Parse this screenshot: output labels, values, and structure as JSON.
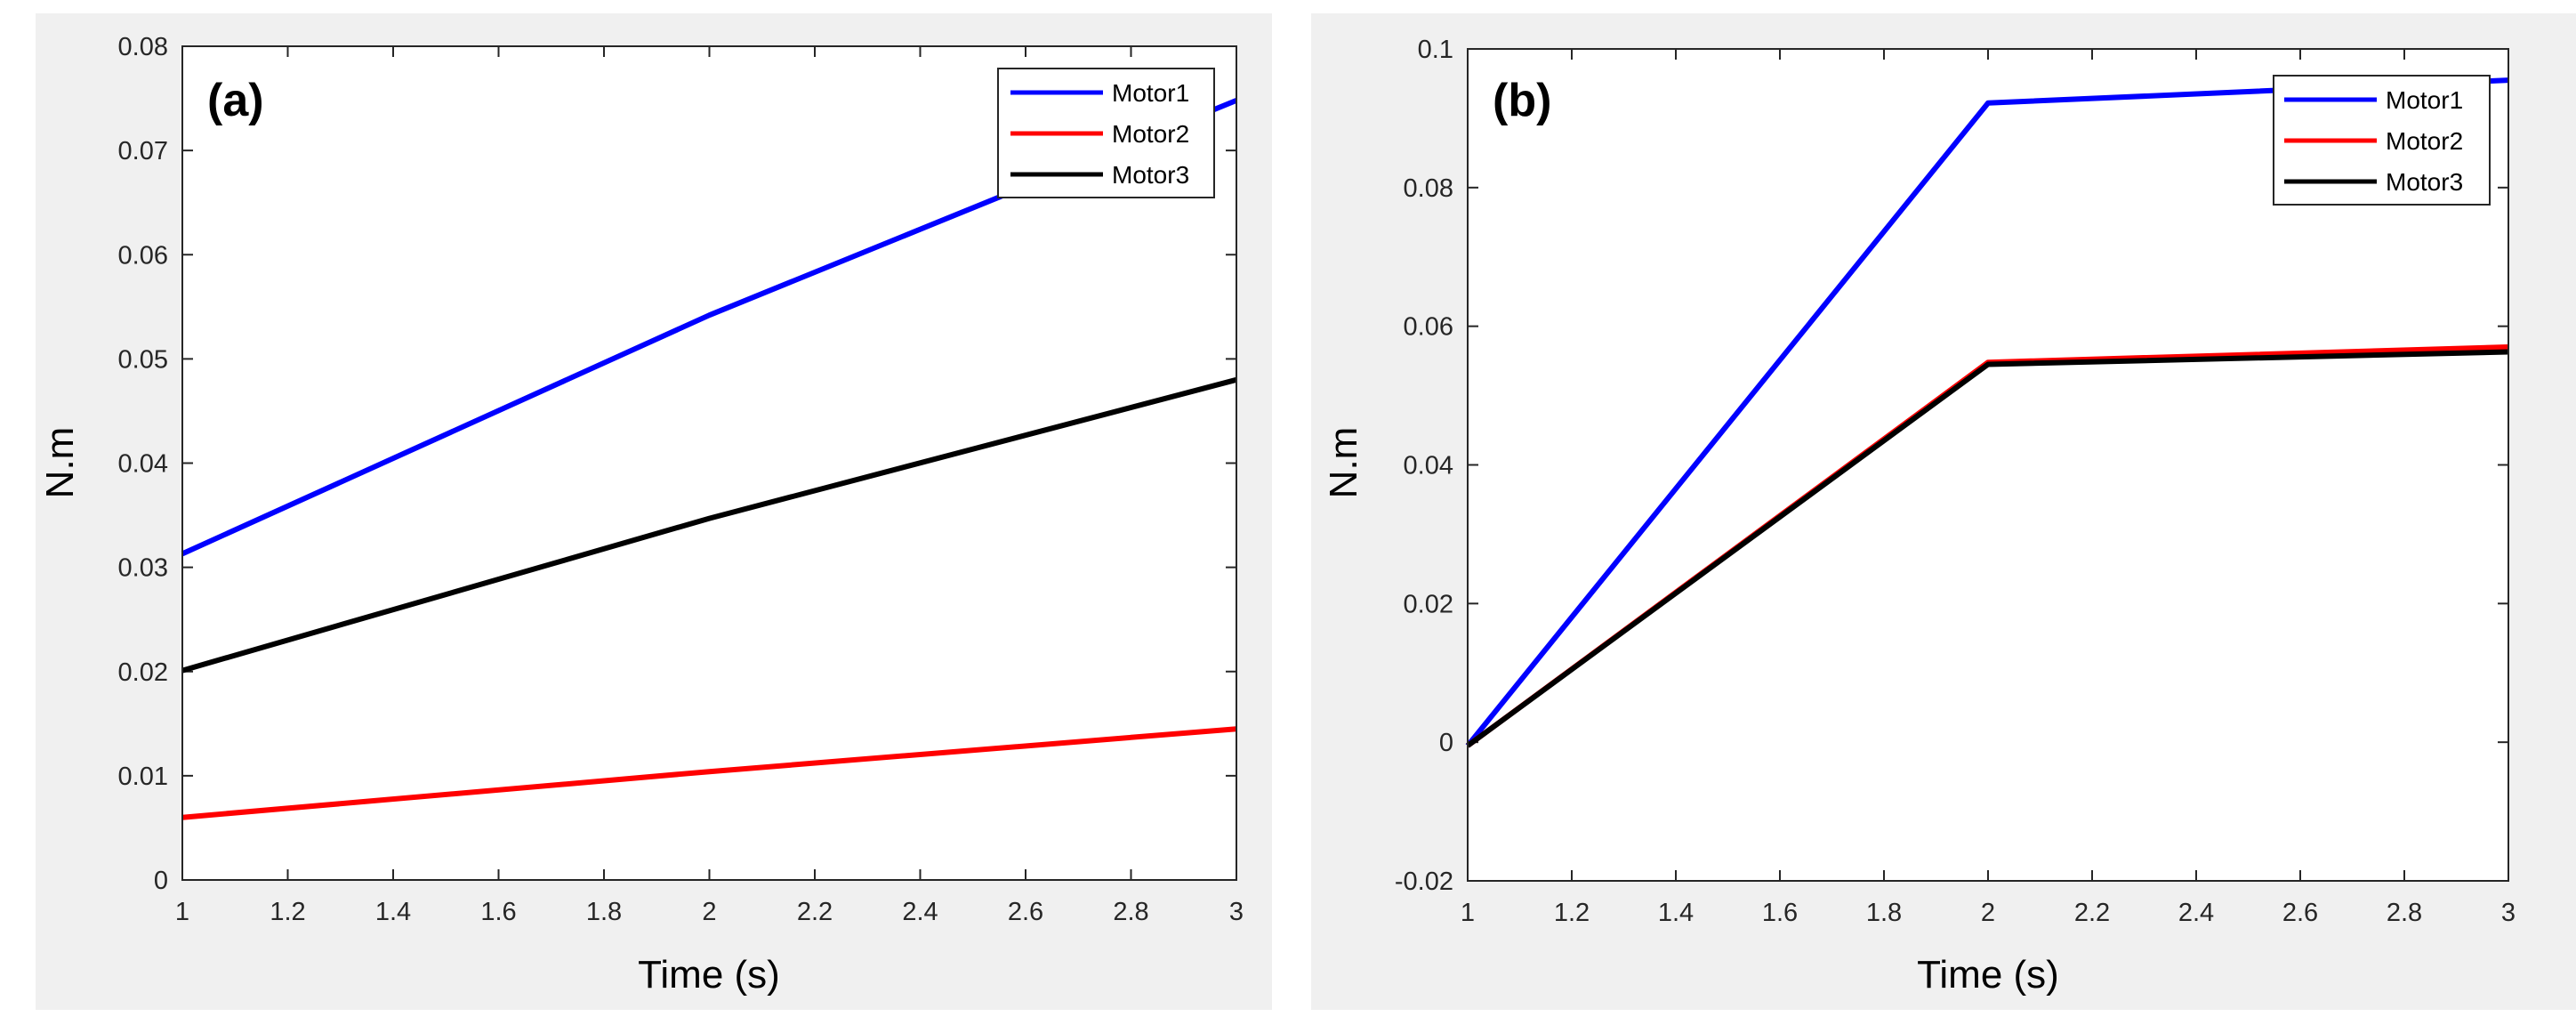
{
  "chart_data": [
    {
      "type": "line",
      "panel_label": "(a)",
      "xlabel": "Time (s)",
      "ylabel": "N.m",
      "xlim": [
        1,
        3
      ],
      "ylim": [
        0,
        0.08
      ],
      "xticks": [
        1,
        1.2,
        1.4,
        1.6,
        1.8,
        2,
        2.2,
        2.4,
        2.6,
        2.8,
        3
      ],
      "xtick_labels": [
        "1",
        "1.2",
        "1.4",
        "1.6",
        "1.8",
        "2",
        "2.2",
        "2.4",
        "2.6",
        "2.8",
        "3"
      ],
      "yticks": [
        0,
        0.01,
        0.02,
        0.03,
        0.04,
        0.05,
        0.06,
        0.07,
        0.08
      ],
      "ytick_labels": [
        "0",
        "0.01",
        "0.02",
        "0.03",
        "0.04",
        "0.05",
        "0.06",
        "0.07",
        "0.08"
      ],
      "legend_position": "top-right",
      "x": [
        1,
        2,
        3
      ],
      "series": [
        {
          "name": "Motor1",
          "color": "#0000ff",
          "values": [
            0.0313,
            0.0542,
            0.0748
          ]
        },
        {
          "name": "Motor2",
          "color": "#ff0000",
          "values": [
            0.006,
            0.0104,
            0.0145
          ]
        },
        {
          "name": "Motor3",
          "color": "#000000",
          "values": [
            0.0201,
            0.0347,
            0.048
          ]
        }
      ]
    },
    {
      "type": "line",
      "panel_label": "(b)",
      "xlabel": "Time (s)",
      "ylabel": "N.m",
      "xlim": [
        1,
        3
      ],
      "ylim": [
        -0.02,
        0.1
      ],
      "xticks": [
        1,
        1.2,
        1.4,
        1.6,
        1.8,
        2,
        2.2,
        2.4,
        2.6,
        2.8,
        3
      ],
      "xtick_labels": [
        "1",
        "1.2",
        "1.4",
        "1.6",
        "1.8",
        "2",
        "2.2",
        "2.4",
        "2.6",
        "2.8",
        "3"
      ],
      "yticks": [
        -0.02,
        0,
        0.02,
        0.04,
        0.06,
        0.08,
        0.1
      ],
      "ytick_labels": [
        "-0.02",
        "0",
        "0.02",
        "0.04",
        "0.06",
        "0.08",
        "0.1"
      ],
      "legend_position": "top-right",
      "x": [
        1,
        2,
        3
      ],
      "series": [
        {
          "name": "Motor1",
          "color": "#0000ff",
          "values": [
            -0.0005,
            0.0922,
            0.0955
          ]
        },
        {
          "name": "Motor2",
          "color": "#ff0000",
          "values": [
            -0.0005,
            0.0548,
            0.057
          ]
        },
        {
          "name": "Motor3",
          "color": "#000000",
          "values": [
            -0.0005,
            0.0545,
            0.0563
          ]
        }
      ]
    }
  ]
}
